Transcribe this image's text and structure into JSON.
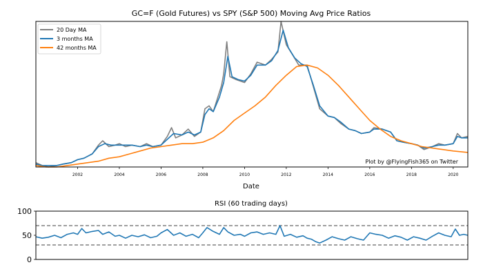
{
  "chart_data": [
    {
      "type": "line",
      "title": "GC=F (Gold Futures) vs SPY (S&P 500) Moving Avg Price Ratios",
      "xlabel": "Date",
      "ylabel": "",
      "x_ticks": [
        "2002",
        "2004",
        "2006",
        "2008",
        "2010",
        "2012",
        "2014",
        "2016",
        "2018",
        "2020"
      ],
      "xlim": [
        2000.0,
        2020.7
      ],
      "y_ticks_visible": false,
      "ylim": [
        0,
        100
      ],
      "legend": "top-left",
      "annotation": "Plot by @FlyingFish365 on Twitter",
      "series": [
        {
          "name": "20 Day MA",
          "color": "#7f7f7f",
          "points": [
            [
              2000.0,
              3
            ],
            [
              2000.3,
              1
            ],
            [
              2000.6,
              0
            ],
            [
              2001.0,
              1
            ],
            [
              2001.3,
              2
            ],
            [
              2001.7,
              3
            ],
            [
              2002.0,
              5
            ],
            [
              2002.3,
              6
            ],
            [
              2002.7,
              9
            ],
            [
              2003.0,
              15
            ],
            [
              2003.2,
              18
            ],
            [
              2003.5,
              14
            ],
            [
              2003.8,
              15
            ],
            [
              2004.0,
              16
            ],
            [
              2004.3,
              14
            ],
            [
              2004.6,
              15
            ],
            [
              2005.0,
              14
            ],
            [
              2005.3,
              16
            ],
            [
              2005.6,
              14
            ],
            [
              2006.0,
              15
            ],
            [
              2006.3,
              21
            ],
            [
              2006.5,
              27
            ],
            [
              2006.7,
              20
            ],
            [
              2007.0,
              22
            ],
            [
              2007.3,
              26
            ],
            [
              2007.6,
              21
            ],
            [
              2007.9,
              24
            ],
            [
              2008.1,
              40
            ],
            [
              2008.3,
              42
            ],
            [
              2008.5,
              38
            ],
            [
              2008.7,
              47
            ],
            [
              2008.9,
              56
            ],
            [
              2009.0,
              64
            ],
            [
              2009.15,
              86
            ],
            [
              2009.3,
              62
            ],
            [
              2009.6,
              60
            ],
            [
              2010.0,
              58
            ],
            [
              2010.3,
              64
            ],
            [
              2010.6,
              72
            ],
            [
              2011.0,
              70
            ],
            [
              2011.3,
              74
            ],
            [
              2011.6,
              79
            ],
            [
              2011.75,
              100
            ],
            [
              2012.0,
              84
            ],
            [
              2012.3,
              77
            ],
            [
              2012.6,
              70
            ],
            [
              2013.0,
              70
            ],
            [
              2013.3,
              55
            ],
            [
              2013.6,
              40
            ],
            [
              2014.0,
              35
            ],
            [
              2014.3,
              34
            ],
            [
              2014.6,
              30
            ],
            [
              2015.0,
              26
            ],
            [
              2015.3,
              25
            ],
            [
              2015.6,
              23
            ],
            [
              2016.0,
              24
            ],
            [
              2016.2,
              27
            ],
            [
              2016.6,
              26
            ],
            [
              2017.0,
              24
            ],
            [
              2017.3,
              18
            ],
            [
              2017.6,
              17
            ],
            [
              2018.0,
              16
            ],
            [
              2018.3,
              15
            ],
            [
              2018.6,
              12
            ],
            [
              2019.0,
              14
            ],
            [
              2019.3,
              16
            ],
            [
              2019.6,
              15
            ],
            [
              2020.0,
              16
            ],
            [
              2020.2,
              23
            ],
            [
              2020.4,
              20
            ],
            [
              2020.7,
              21
            ]
          ]
        },
        {
          "name": "3 months MA",
          "color": "#1f77b4",
          "points": [
            [
              2000.0,
              2
            ],
            [
              2000.3,
              1
            ],
            [
              2000.6,
              1
            ],
            [
              2001.0,
              1
            ],
            [
              2001.3,
              2
            ],
            [
              2001.7,
              3
            ],
            [
              2002.0,
              5
            ],
            [
              2002.3,
              6
            ],
            [
              2002.7,
              9
            ],
            [
              2003.0,
              14
            ],
            [
              2003.3,
              16
            ],
            [
              2003.6,
              15
            ],
            [
              2004.0,
              15
            ],
            [
              2004.3,
              15
            ],
            [
              2004.6,
              15
            ],
            [
              2005.0,
              14
            ],
            [
              2005.3,
              15
            ],
            [
              2005.6,
              14
            ],
            [
              2006.0,
              15
            ],
            [
              2006.3,
              19
            ],
            [
              2006.6,
              23
            ],
            [
              2007.0,
              22
            ],
            [
              2007.3,
              24
            ],
            [
              2007.6,
              22
            ],
            [
              2007.9,
              24
            ],
            [
              2008.1,
              36
            ],
            [
              2008.3,
              40
            ],
            [
              2008.5,
              38
            ],
            [
              2008.8,
              48
            ],
            [
              2009.0,
              58
            ],
            [
              2009.2,
              76
            ],
            [
              2009.4,
              62
            ],
            [
              2009.7,
              60
            ],
            [
              2010.0,
              59
            ],
            [
              2010.3,
              63
            ],
            [
              2010.6,
              70
            ],
            [
              2011.0,
              70
            ],
            [
              2011.3,
              73
            ],
            [
              2011.6,
              80
            ],
            [
              2011.85,
              94
            ],
            [
              2012.1,
              82
            ],
            [
              2012.4,
              75
            ],
            [
              2012.7,
              71
            ],
            [
              2013.0,
              69
            ],
            [
              2013.3,
              56
            ],
            [
              2013.6,
              42
            ],
            [
              2014.0,
              35
            ],
            [
              2014.3,
              34
            ],
            [
              2014.6,
              31
            ],
            [
              2015.0,
              26
            ],
            [
              2015.3,
              25
            ],
            [
              2015.6,
              23
            ],
            [
              2016.0,
              24
            ],
            [
              2016.2,
              26
            ],
            [
              2016.6,
              26
            ],
            [
              2017.0,
              24
            ],
            [
              2017.3,
              18
            ],
            [
              2017.6,
              17
            ],
            [
              2018.0,
              16
            ],
            [
              2018.3,
              15
            ],
            [
              2018.6,
              13
            ],
            [
              2019.0,
              14
            ],
            [
              2019.3,
              15
            ],
            [
              2019.6,
              15
            ],
            [
              2020.0,
              16
            ],
            [
              2020.2,
              21
            ],
            [
              2020.4,
              20
            ],
            [
              2020.7,
              20
            ]
          ]
        },
        {
          "name": "42 months MA",
          "color": "#ff7f0e",
          "points": [
            [
              2000.0,
              1
            ],
            [
              2000.5,
              0
            ],
            [
              2001.0,
              0
            ],
            [
              2001.5,
              1
            ],
            [
              2002.0,
              2
            ],
            [
              2002.5,
              3
            ],
            [
              2003.0,
              4
            ],
            [
              2003.5,
              6
            ],
            [
              2004.0,
              7
            ],
            [
              2004.5,
              9
            ],
            [
              2005.0,
              11
            ],
            [
              2005.5,
              13
            ],
            [
              2006.0,
              14
            ],
            [
              2006.5,
              15
            ],
            [
              2007.0,
              16
            ],
            [
              2007.5,
              16
            ],
            [
              2008.0,
              17
            ],
            [
              2008.5,
              20
            ],
            [
              2009.0,
              25
            ],
            [
              2009.5,
              32
            ],
            [
              2010.0,
              37
            ],
            [
              2010.5,
              42
            ],
            [
              2011.0,
              48
            ],
            [
              2011.5,
              56
            ],
            [
              2012.0,
              63
            ],
            [
              2012.5,
              69
            ],
            [
              2013.0,
              70
            ],
            [
              2013.5,
              68
            ],
            [
              2014.0,
              63
            ],
            [
              2014.5,
              56
            ],
            [
              2015.0,
              48
            ],
            [
              2015.5,
              40
            ],
            [
              2016.0,
              32
            ],
            [
              2016.5,
              26
            ],
            [
              2017.0,
              21
            ],
            [
              2017.5,
              18
            ],
            [
              2018.0,
              16
            ],
            [
              2018.5,
              14
            ],
            [
              2019.0,
              13
            ],
            [
              2019.5,
              12
            ],
            [
              2020.0,
              11
            ],
            [
              2020.7,
              10
            ]
          ]
        }
      ]
    },
    {
      "type": "line",
      "title": "RSI (60 trading days)",
      "xlabel": "",
      "ylabel": "",
      "y_ticks": [
        "0",
        "50",
        "100"
      ],
      "ylim": [
        0,
        100
      ],
      "xlim": [
        2000.0,
        2020.7
      ],
      "reference_lines": [
        70,
        30
      ],
      "series": [
        {
          "name": "",
          "color": "#1f77b4",
          "points": [
            [
              2000.0,
              47
            ],
            [
              2000.3,
              44
            ],
            [
              2000.6,
              46
            ],
            [
              2000.9,
              50
            ],
            [
              2001.2,
              45
            ],
            [
              2001.5,
              52
            ],
            [
              2001.8,
              55
            ],
            [
              2002.0,
              52
            ],
            [
              2002.2,
              64
            ],
            [
              2002.4,
              55
            ],
            [
              2002.7,
              58
            ],
            [
              2003.0,
              60
            ],
            [
              2003.2,
              52
            ],
            [
              2003.5,
              57
            ],
            [
              2003.8,
              48
            ],
            [
              2004.0,
              50
            ],
            [
              2004.3,
              44
            ],
            [
              2004.6,
              50
            ],
            [
              2004.9,
              47
            ],
            [
              2005.2,
              51
            ],
            [
              2005.5,
              45
            ],
            [
              2005.8,
              48
            ],
            [
              2006.0,
              55
            ],
            [
              2006.3,
              62
            ],
            [
              2006.6,
              50
            ],
            [
              2006.9,
              55
            ],
            [
              2007.2,
              48
            ],
            [
              2007.5,
              52
            ],
            [
              2007.8,
              45
            ],
            [
              2008.0,
              55
            ],
            [
              2008.2,
              66
            ],
            [
              2008.5,
              58
            ],
            [
              2008.8,
              52
            ],
            [
              2009.0,
              66
            ],
            [
              2009.2,
              57
            ],
            [
              2009.5,
              50
            ],
            [
              2009.8,
              52
            ],
            [
              2010.0,
              48
            ],
            [
              2010.3,
              55
            ],
            [
              2010.6,
              57
            ],
            [
              2010.9,
              52
            ],
            [
              2011.2,
              55
            ],
            [
              2011.5,
              52
            ],
            [
              2011.7,
              70
            ],
            [
              2011.9,
              48
            ],
            [
              2012.2,
              52
            ],
            [
              2012.5,
              46
            ],
            [
              2012.8,
              49
            ],
            [
              2013.0,
              44
            ],
            [
              2013.2,
              42
            ],
            [
              2013.4,
              37
            ],
            [
              2013.6,
              34
            ],
            [
              2013.9,
              40
            ],
            [
              2014.2,
              47
            ],
            [
              2014.5,
              43
            ],
            [
              2014.8,
              40
            ],
            [
              2015.1,
              47
            ],
            [
              2015.4,
              43
            ],
            [
              2015.7,
              40
            ],
            [
              2016.0,
              55
            ],
            [
              2016.3,
              52
            ],
            [
              2016.6,
              50
            ],
            [
              2016.9,
              44
            ],
            [
              2017.2,
              49
            ],
            [
              2017.5,
              46
            ],
            [
              2017.8,
              40
            ],
            [
              2018.1,
              47
            ],
            [
              2018.4,
              44
            ],
            [
              2018.7,
              40
            ],
            [
              2019.0,
              48
            ],
            [
              2019.3,
              55
            ],
            [
              2019.6,
              50
            ],
            [
              2019.9,
              47
            ],
            [
              2020.1,
              63
            ],
            [
              2020.3,
              50
            ],
            [
              2020.5,
              52
            ],
            [
              2020.7,
              50
            ]
          ]
        }
      ]
    }
  ]
}
